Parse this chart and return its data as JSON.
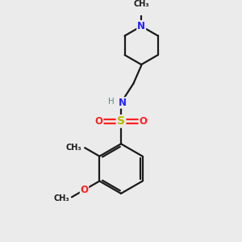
{
  "bg_color": "#ebebeb",
  "bond_color": "#1a1a1a",
  "N_color": "#2020ff",
  "O_color": "#ff2020",
  "S_color": "#b8b800",
  "H_color": "#5a8a8a",
  "line_width": 1.6,
  "font_size": 8.5,
  "fig_width": 3.0,
  "fig_height": 3.0,
  "dpi": 100,
  "xlim": [
    0,
    10
  ],
  "ylim": [
    0,
    10
  ]
}
